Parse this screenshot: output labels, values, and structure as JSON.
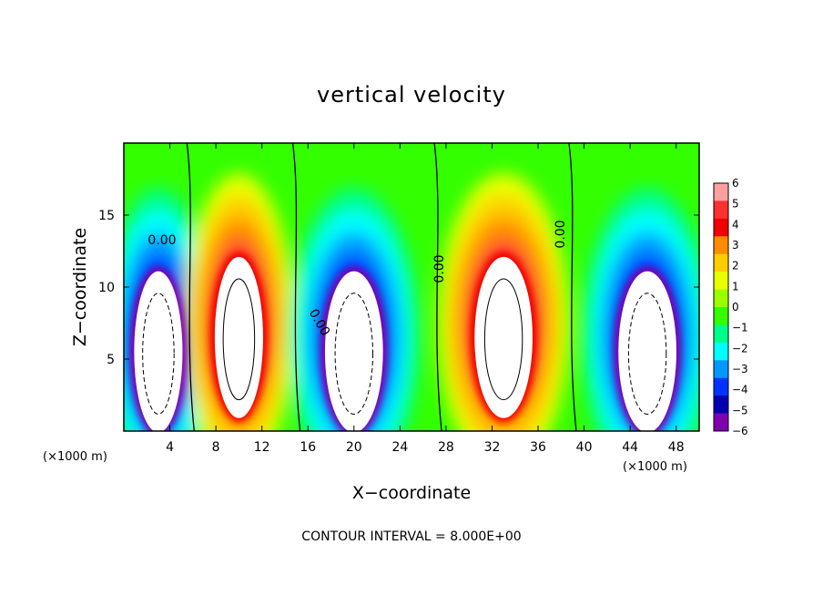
{
  "chart_data": {
    "type": "heatmap",
    "title": "vertical velocity",
    "xlabel": "X−coordinate",
    "ylabel": "Z−coordinate",
    "x_unit": "(×1000 m)",
    "x_unit_right": "(×1000 m)",
    "xlim": [
      0,
      50
    ],
    "ylim": [
      0,
      20
    ],
    "x_ticks": [
      4,
      8,
      12,
      16,
      20,
      24,
      28,
      32,
      36,
      40,
      44,
      48
    ],
    "y_ticks": [
      5,
      10,
      15
    ],
    "x_tick_labels": [
      "4",
      "8",
      "12",
      "16",
      "20",
      "24",
      "28",
      "32",
      "36",
      "40",
      "44",
      "48"
    ],
    "y_tick_labels": [
      "5",
      "10",
      "15"
    ],
    "colorbar": {
      "levels": [
        "6",
        "5",
        "4",
        "3",
        "2",
        "1",
        "0",
        "−1",
        "−2",
        "−3",
        "−4",
        "−5",
        "−6"
      ],
      "colors": [
        "#ffa0a0",
        "#ff3030",
        "#f00000",
        "#ff8c00",
        "#ffcc00",
        "#e8ff00",
        "#9cff00",
        "#33ff00",
        "#00ff88",
        "#00ffff",
        "#0099ff",
        "#0033ff",
        "#0000b0",
        "#8000b0"
      ]
    },
    "contour_labels": [
      "0.00",
      "0.00",
      "0.00",
      "0.00"
    ],
    "footer": "CONTOUR INTERVAL = 8.000E+00",
    "cells": [
      {
        "x": 3,
        "w": 5,
        "type": "down",
        "peak": 6
      },
      {
        "x": 10,
        "w": 5,
        "type": "up",
        "peak": 6
      },
      {
        "x": 20,
        "w": 6,
        "type": "down",
        "peak": 6
      },
      {
        "x": 33,
        "w": 6,
        "type": "up",
        "peak": 6
      },
      {
        "x": 45.5,
        "w": 6,
        "type": "down",
        "peak": 6
      }
    ]
  }
}
